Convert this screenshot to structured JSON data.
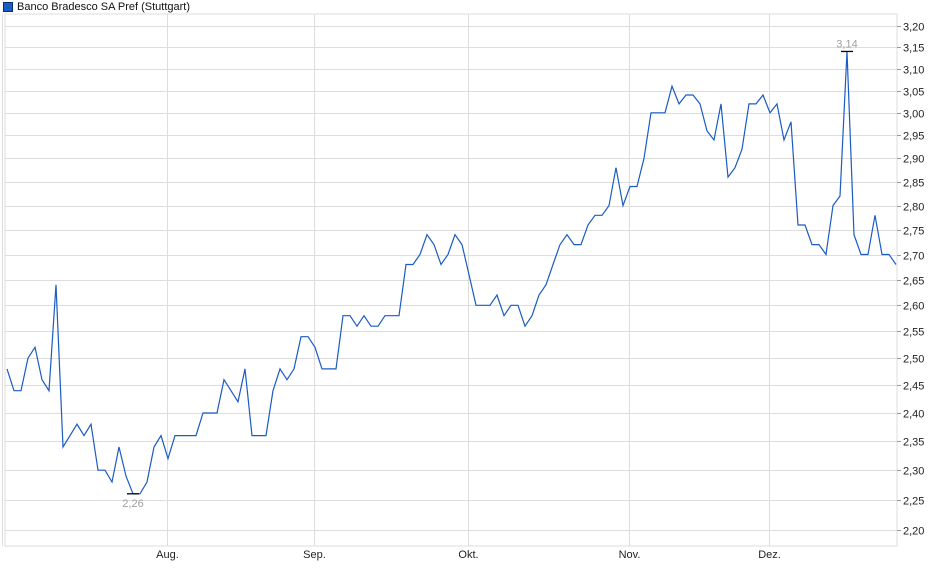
{
  "chart_data": {
    "type": "line",
    "title": "",
    "legend": {
      "label": "Banco Bradesco SA Pref (Stuttgart)",
      "placement": "top-left"
    },
    "series": [
      {
        "name": "Banco Bradesco SA Pref (Stuttgart)",
        "color": "#1a5bc4",
        "values": [
          2.48,
          2.44,
          2.44,
          2.5,
          2.52,
          2.46,
          2.44,
          2.64,
          2.34,
          2.36,
          2.38,
          2.36,
          2.38,
          2.3,
          2.3,
          2.28,
          2.34,
          2.29,
          2.26,
          2.26,
          2.28,
          2.34,
          2.36,
          2.32,
          2.36,
          2.36,
          2.36,
          2.36,
          2.4,
          2.4,
          2.4,
          2.46,
          2.44,
          2.42,
          2.48,
          2.36,
          2.36,
          2.36,
          2.44,
          2.48,
          2.46,
          2.48,
          2.54,
          2.54,
          2.52,
          2.48,
          2.48,
          2.48,
          2.58,
          2.58,
          2.56,
          2.58,
          2.56,
          2.56,
          2.58,
          2.58,
          2.58,
          2.68,
          2.68,
          2.7,
          2.74,
          2.72,
          2.68,
          2.7,
          2.74,
          2.72,
          2.66,
          2.6,
          2.6,
          2.6,
          2.62,
          2.58,
          2.6,
          2.6,
          2.56,
          2.58,
          2.62,
          2.64,
          2.68,
          2.72,
          2.74,
          2.72,
          2.72,
          2.76,
          2.78,
          2.78,
          2.8,
          2.88,
          2.8,
          2.84,
          2.84,
          2.9,
          3.0,
          3.0,
          3.0,
          3.06,
          3.02,
          3.04,
          3.04,
          3.02,
          2.96,
          2.94,
          3.02,
          2.86,
          2.88,
          2.92,
          3.02,
          3.02,
          3.04,
          3.0,
          3.02,
          2.94,
          2.98,
          2.76,
          2.76,
          2.72,
          2.72,
          2.7,
          2.8,
          2.82,
          3.14,
          2.74,
          2.7,
          2.7,
          2.78,
          2.7,
          2.7,
          2.68
        ]
      }
    ],
    "y_axis": {
      "scale": "log",
      "range": [
        2.16,
        3.23
      ],
      "ticks": [
        "3,20",
        "3,15",
        "3,10",
        "3,05",
        "3,00",
        "2,95",
        "2,90",
        "2,85",
        "2,80",
        "2,75",
        "2,70",
        "2,65",
        "2,60",
        "2,55",
        "2,50",
        "2,45",
        "2,40",
        "2,35",
        "2,30",
        "2,25",
        "2,20"
      ],
      "tick_values": [
        3.2,
        3.15,
        3.1,
        3.05,
        3.0,
        2.95,
        2.9,
        2.85,
        2.8,
        2.75,
        2.7,
        2.65,
        2.6,
        2.55,
        2.5,
        2.45,
        2.4,
        2.35,
        2.3,
        2.25,
        2.2
      ],
      "position": "right"
    },
    "x_axis": {
      "ticks": [
        {
          "label": "Aug.",
          "point_index": 23
        },
        {
          "label": "Sep.",
          "point_index": 44
        },
        {
          "label": "Okt.",
          "point_index": 66
        },
        {
          "label": "Nov.",
          "point_index": 89
        },
        {
          "label": "Dez.",
          "point_index": 109
        }
      ]
    },
    "annotations": [
      {
        "label": "3,14",
        "point_index": 120,
        "kind": "max"
      },
      {
        "label": "2,26",
        "point_index": 18,
        "kind": "min"
      }
    ],
    "grid": true,
    "colors": {
      "line": "#1a5bc4",
      "grid": "#dddddd",
      "annotation": "#a0a0a0",
      "text": "#222222"
    }
  }
}
